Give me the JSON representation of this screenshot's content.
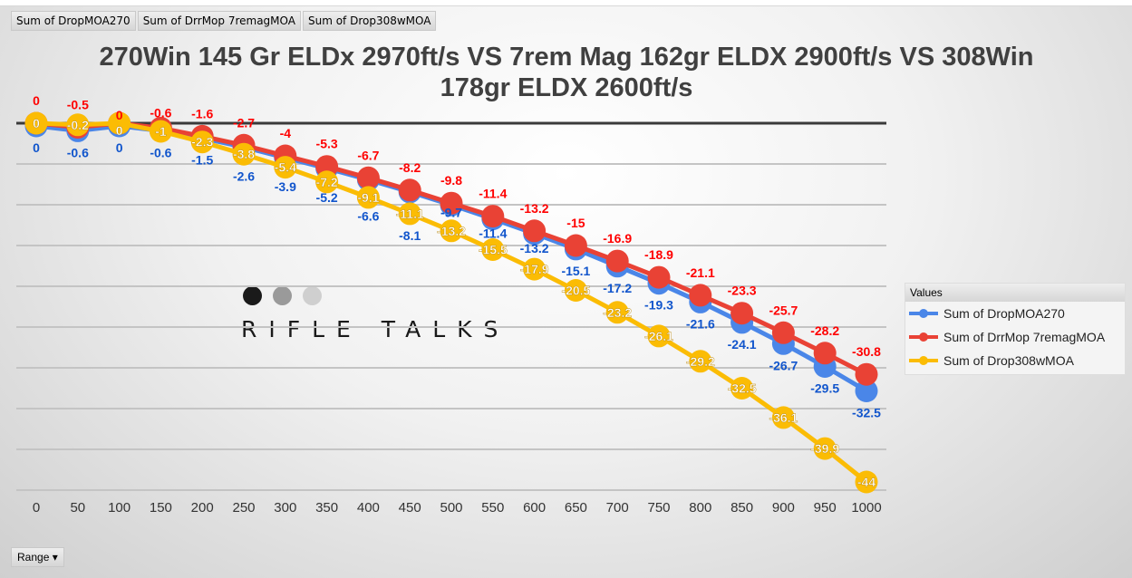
{
  "field_buttons": [
    "Sum of DropMOA270",
    "Sum of DrrMop 7remagMOA",
    "Sum of Drop308wMOA"
  ],
  "range_button": "Range",
  "logo": {
    "text": "RIFLE TALKS",
    "dot_colors": [
      "#1a1a1a",
      "#9a9a9a",
      "#cfcfcf"
    ]
  },
  "chart_data": {
    "type": "line",
    "title": "270Win 145 Gr ELDx 2970ft/s VS 7rem Mag 162gr ELDX 2900ft/s VS 308Win 178gr ELDX 2600ft/s",
    "x": [
      0,
      50,
      100,
      150,
      200,
      250,
      300,
      350,
      400,
      450,
      500,
      550,
      600,
      650,
      700,
      750,
      800,
      850,
      900,
      950,
      1000
    ],
    "ylim": [
      -45,
      0
    ],
    "grid": true,
    "legend_title": "Values",
    "legend_position": "right",
    "data_labels": true,
    "series": [
      {
        "name": "Sum of DropMOA270",
        "color": "#4a86e8",
        "label_color": "#1155cc",
        "values": [
          0,
          -0.6,
          0,
          -0.6,
          -1.5,
          -2.6,
          -3.9,
          -5.2,
          -6.6,
          -8.1,
          -9.7,
          -11.4,
          -13.2,
          -15.1,
          -17.2,
          -19.3,
          -21.6,
          -24.1,
          -26.7,
          -29.5,
          -32.5
        ]
      },
      {
        "name": "Sum of DrrMop 7remagMOA",
        "color": "#e94235",
        "label_color": "#ff0000",
        "values": [
          0,
          -0.5,
          0,
          -0.6,
          -1.6,
          -2.7,
          -4,
          -5.3,
          -6.7,
          -8.2,
          -9.8,
          -11.4,
          -13.2,
          -15,
          -16.9,
          -18.9,
          -21.1,
          -23.3,
          -25.7,
          -28.2,
          -30.8
        ]
      },
      {
        "name": "Sum of Drop308wMOA",
        "color": "#fbbc04",
        "label_color": "#ffffff",
        "values": [
          0,
          -0.2,
          0,
          -1,
          -2.3,
          -3.8,
          -5.4,
          -7.2,
          -9.1,
          -11.1,
          -13.2,
          -15.5,
          -17.9,
          -20.5,
          -23.2,
          -26.1,
          -29.2,
          -32.5,
          -36.1,
          -39.9,
          -44
        ]
      }
    ]
  }
}
